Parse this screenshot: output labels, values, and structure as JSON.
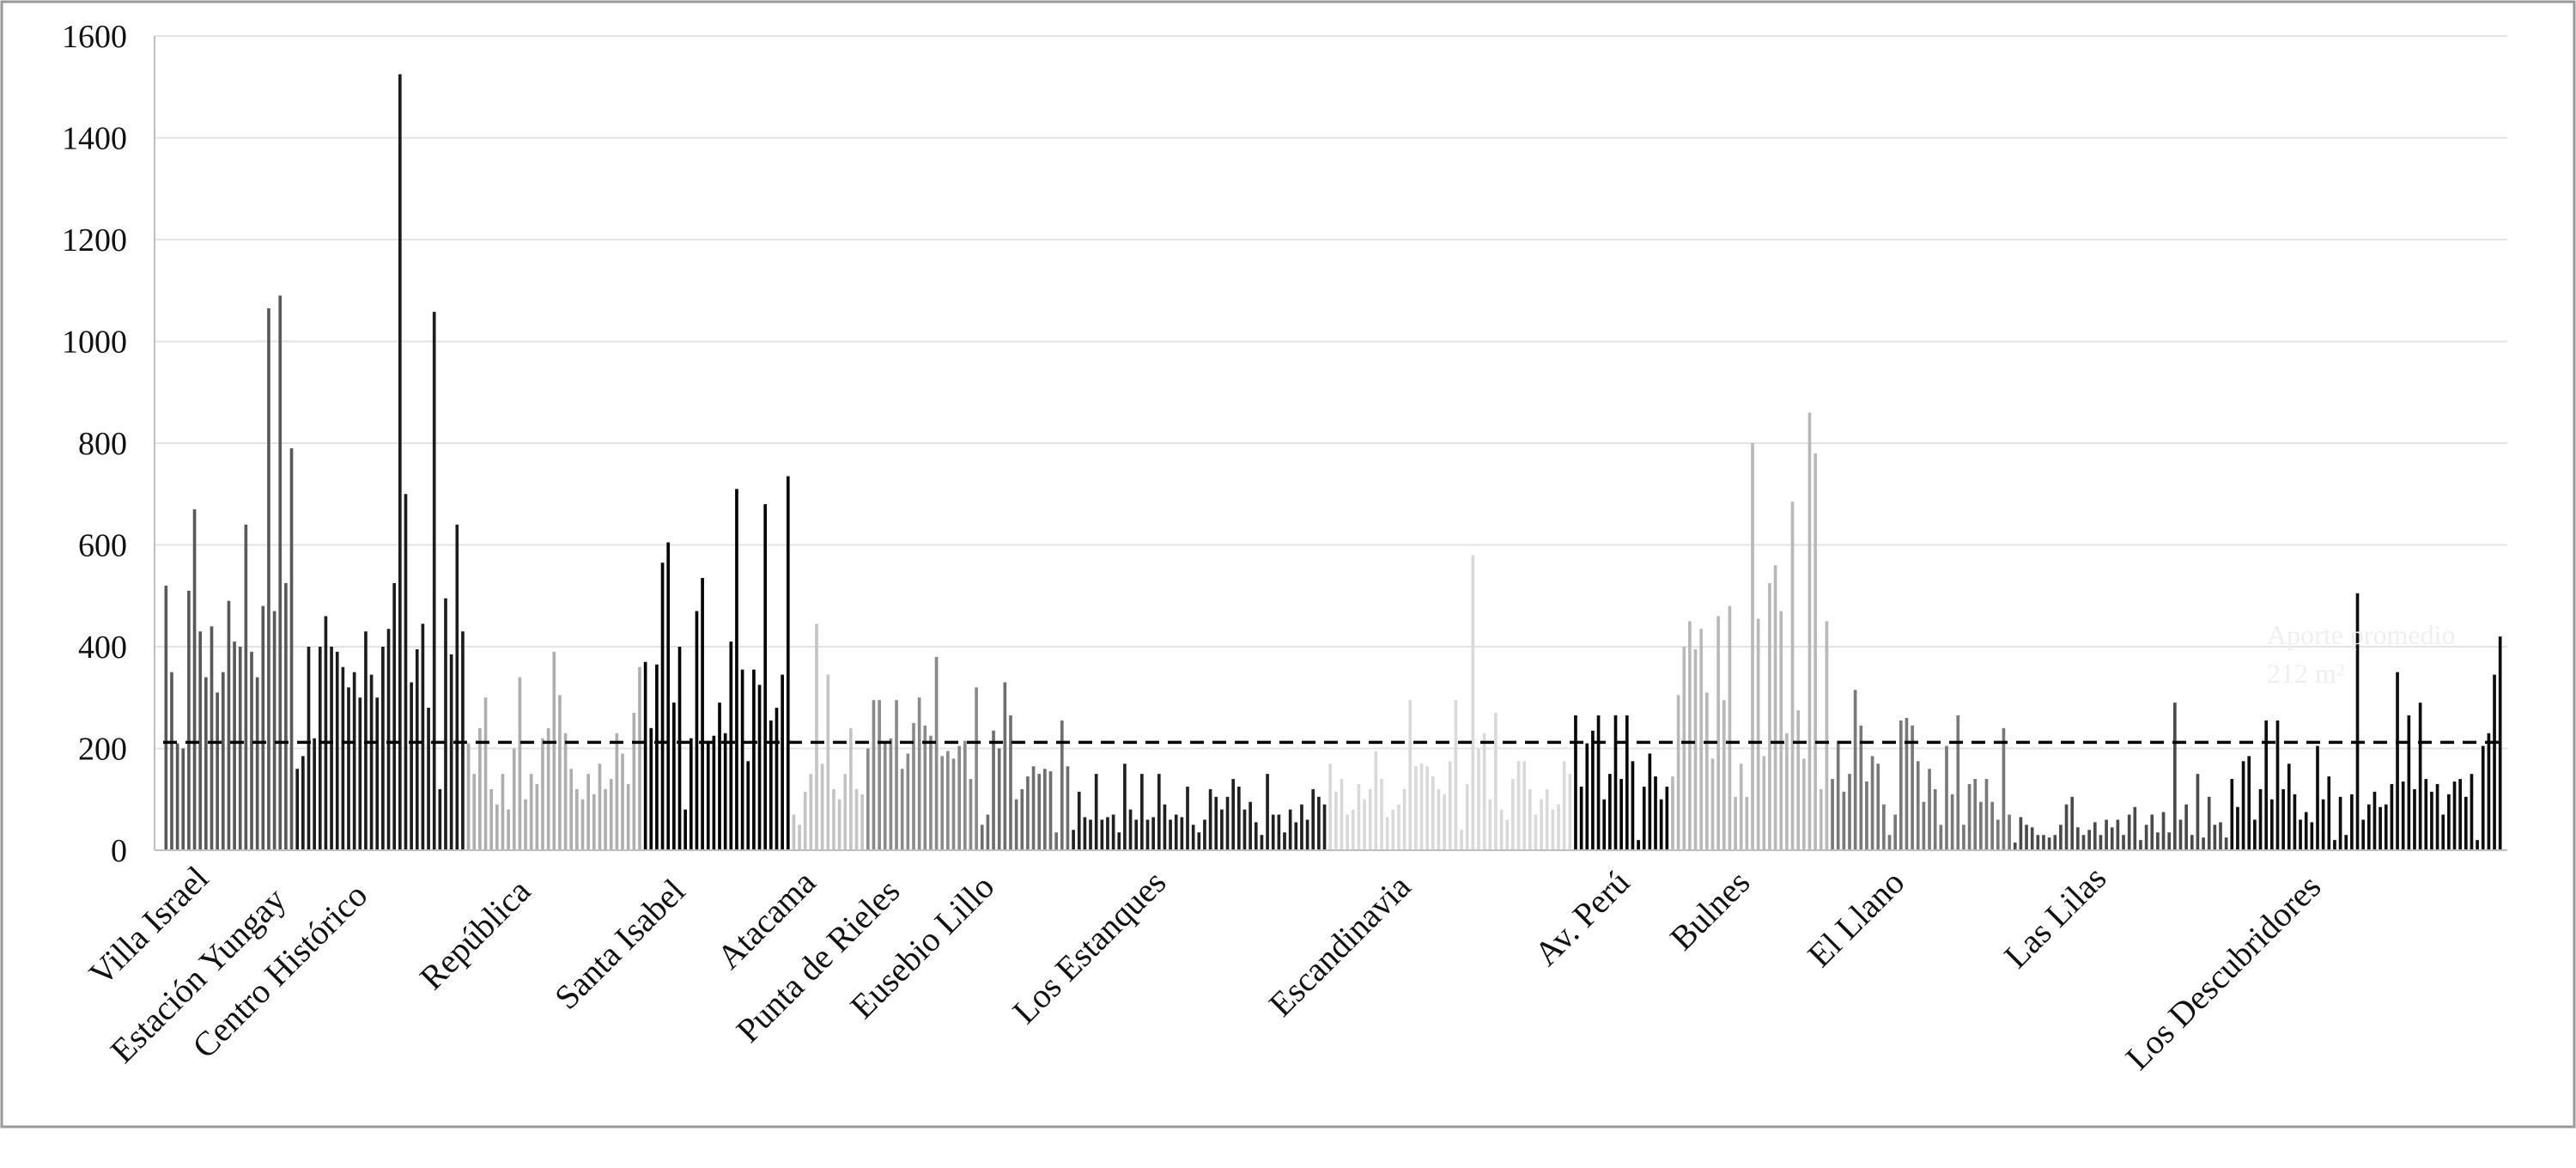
{
  "chart_data": {
    "type": "bar",
    "title": "",
    "xlabel": "",
    "ylabel": "",
    "ylim": [
      0,
      1600
    ],
    "yticks": [
      0,
      200,
      400,
      600,
      800,
      1000,
      1200,
      1400,
      1600
    ],
    "grid": "horizontal",
    "legend": "none",
    "average": {
      "value": 212,
      "label_line1": "Aporte promedio",
      "label_line2": "212 m²",
      "style": "dashed"
    },
    "groups": [
      {
        "name": "Villa Israel",
        "color": "#595959",
        "values": [
          520,
          350,
          210,
          200,
          510,
          670,
          430,
          340,
          440,
          310,
          350,
          490,
          410,
          400,
          640,
          390,
          340,
          480,
          1065,
          470,
          1090,
          525,
          790
        ]
      },
      {
        "name": "Estación Yungay",
        "color": "#1c1c1c",
        "values": [
          160,
          185,
          400,
          220,
          400,
          460,
          400,
          390,
          360,
          320,
          350,
          300,
          430,
          345,
          300,
          400,
          435,
          525,
          1525,
          700,
          330,
          395,
          445,
          280,
          1058,
          120,
          495,
          385,
          640,
          430
        ]
      },
      {
        "name": "Centro Histórico",
        "color": "#aeaeae",
        "values": [
          210,
          150,
          240,
          300,
          120,
          90,
          150,
          80,
          200,
          340,
          100,
          150,
          130,
          220,
          240,
          390,
          305,
          230,
          160,
          120,
          100,
          150,
          110,
          170,
          120,
          140,
          230,
          190,
          130,
          270,
          360
        ]
      },
      {
        "name": "República",
        "color": "#000000",
        "values": [
          370,
          240,
          365,
          565,
          605,
          290,
          400,
          80,
          220,
          470,
          535,
          215,
          225,
          290,
          230,
          410,
          710,
          355,
          175,
          355,
          325,
          680,
          255,
          280,
          345,
          735
        ]
      },
      {
        "name": "Santa Isabel",
        "color": "#c4c4c4",
        "values": [
          70,
          50,
          115,
          150,
          445,
          170,
          345,
          120,
          100,
          150,
          240,
          120,
          110
        ]
      },
      {
        "name": "Atacama",
        "color": "#8a8a8a",
        "values": [
          200,
          295,
          295,
          210,
          220,
          295,
          160,
          190,
          250,
          300,
          245,
          225,
          380,
          185,
          195,
          180,
          205,
          215,
          140,
          320
        ]
      },
      {
        "name": "Punta de Rieles",
        "color": "#6e6e6e",
        "values": [
          50,
          70,
          235,
          200,
          330,
          265,
          100,
          120,
          145,
          165,
          150,
          160,
          155,
          35,
          255,
          165
        ]
      },
      {
        "name": "Eusebio Lillo",
        "color": "#202020",
        "values": [
          40,
          115,
          65,
          60,
          150,
          60,
          65,
          70,
          35,
          170,
          80,
          60,
          150,
          60,
          65,
          150,
          90,
          60,
          70,
          65,
          125,
          50,
          35,
          60,
          120,
          105,
          80,
          105,
          140,
          125,
          80,
          95,
          55,
          30,
          150,
          70,
          70,
          35,
          80,
          55,
          90,
          60,
          120,
          105,
          90
        ]
      },
      {
        "name": "Los Estanques",
        "color": "#d9d9d9",
        "values": [
          170,
          115,
          140,
          70,
          80,
          130,
          100,
          120,
          195,
          140,
          65,
          80,
          90,
          120,
          295,
          165,
          170,
          165,
          145,
          120,
          110,
          175,
          295,
          40,
          130,
          580,
          200,
          230,
          100,
          270,
          80,
          60,
          140,
          175,
          175,
          120,
          70,
          100,
          120,
          80,
          90,
          175,
          150
        ]
      },
      {
        "name": "Escandinavia",
        "color": "#050505",
        "values": [
          265,
          125,
          210,
          235,
          265,
          100,
          150,
          265,
          140,
          265,
          175,
          20,
          125,
          190,
          145,
          100,
          125
        ]
      },
      {
        "name": "Av. Perú",
        "color": "#b8b8b8",
        "values": [
          145,
          305,
          400,
          450,
          395,
          435,
          310,
          180,
          460,
          295,
          480,
          105,
          170,
          105,
          800,
          455,
          185,
          525,
          560,
          470,
          230,
          685,
          275,
          180,
          860,
          780,
          120,
          450
        ]
      },
      {
        "name": "Bulnes",
        "color": "#787878",
        "values": [
          140,
          215,
          115,
          150,
          315,
          245,
          135,
          185,
          170,
          90,
          30,
          70,
          255,
          260,
          245,
          175,
          95,
          160,
          120,
          50,
          205,
          110,
          265,
          50,
          130,
          140,
          95,
          140,
          95,
          60,
          240,
          70
        ]
      },
      {
        "name": "El Llano",
        "color": "#4a4a4a",
        "values": [
          15,
          65,
          50,
          45,
          30,
          30,
          25,
          30,
          50,
          90,
          105,
          45,
          30,
          40,
          55,
          30,
          60,
          45,
          60,
          30,
          70,
          85,
          20,
          50,
          70,
          35,
          75,
          35,
          290,
          60,
          90,
          30,
          150,
          25,
          105,
          50,
          55,
          25
        ]
      },
      {
        "name": "Las Lilas",
        "color": "#0d0d0d",
        "values": [
          140,
          85,
          175,
          185,
          60,
          120,
          255,
          100,
          255,
          120,
          170,
          110,
          60,
          75,
          55,
          205,
          100,
          145,
          20,
          105,
          30,
          110,
          505,
          60,
          90,
          115,
          85,
          90,
          130,
          350,
          135,
          265,
          120,
          290,
          140,
          115,
          130,
          70,
          110,
          135,
          140,
          105,
          150,
          20,
          205,
          230,
          345,
          420
        ]
      },
      {
        "name": "Los Descubridores",
        "color": "#595959",
        "values": []
      }
    ]
  },
  "axis_labels_shown": [
    "Villa Israel",
    "Estación Yungay",
    "Centro Histórico",
    "República",
    "Santa Isabel",
    "Atacama",
    "Punta de Rieles",
    "Eusebio Lillo",
    "Los Estanques",
    "Escandinavia",
    "Av. Perú",
    "Bulnes",
    "El Llano",
    "Las Lilas",
    "Los Descubridores"
  ]
}
